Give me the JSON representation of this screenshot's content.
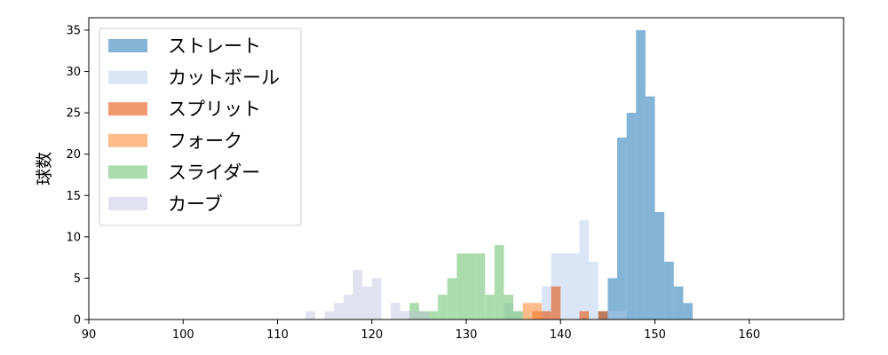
{
  "chart_data": {
    "type": "bar",
    "title": "",
    "xlabel": "",
    "ylabel": "球数",
    "xlim": [
      90,
      170
    ],
    "ylim": [
      0,
      36.5
    ],
    "xticks": [
      90,
      100,
      110,
      120,
      130,
      140,
      150,
      160
    ],
    "yticks": [
      0,
      5,
      10,
      15,
      20,
      25,
      30,
      35
    ],
    "bin_width": 1,
    "grid": false,
    "legend_position": "upper-left",
    "series": [
      {
        "name": "ストレート",
        "color": "#1f77b4",
        "opacity": 0.55,
        "bins": [
          {
            "x": 144,
            "count": 1
          },
          {
            "x": 145,
            "count": 5
          },
          {
            "x": 146,
            "count": 22
          },
          {
            "x": 147,
            "count": 25
          },
          {
            "x": 148,
            "count": 35
          },
          {
            "x": 149,
            "count": 27
          },
          {
            "x": 150,
            "count": 13
          },
          {
            "x": 151,
            "count": 7
          },
          {
            "x": 152,
            "count": 4
          },
          {
            "x": 153,
            "count": 2
          }
        ]
      },
      {
        "name": "カットボール",
        "color": "#aec7e8",
        "opacity": 0.45,
        "bins": [
          {
            "x": 134,
            "count": 2
          },
          {
            "x": 135,
            "count": 1
          },
          {
            "x": 138,
            "count": 4
          },
          {
            "x": 139,
            "count": 8
          },
          {
            "x": 140,
            "count": 8
          },
          {
            "x": 141,
            "count": 8
          },
          {
            "x": 142,
            "count": 12
          },
          {
            "x": 143,
            "count": 7
          },
          {
            "x": 145,
            "count": 1
          },
          {
            "x": 146,
            "count": 1
          }
        ]
      },
      {
        "name": "スプリット",
        "color": "#e6550d",
        "opacity": 0.6,
        "bins": [
          {
            "x": 137,
            "count": 1
          },
          {
            "x": 138,
            "count": 1
          },
          {
            "x": 139,
            "count": 4
          },
          {
            "x": 142,
            "count": 1
          },
          {
            "x": 144,
            "count": 1
          }
        ]
      },
      {
        "name": "フォーク",
        "color": "#fd8d3c",
        "opacity": 0.6,
        "bins": [
          {
            "x": 136,
            "count": 2
          },
          {
            "x": 137,
            "count": 2
          }
        ]
      },
      {
        "name": "スライダー",
        "color": "#74c476",
        "opacity": 0.6,
        "bins": [
          {
            "x": 124,
            "count": 2
          },
          {
            "x": 125,
            "count": 1
          },
          {
            "x": 126,
            "count": 1
          },
          {
            "x": 127,
            "count": 3
          },
          {
            "x": 128,
            "count": 5
          },
          {
            "x": 129,
            "count": 8
          },
          {
            "x": 130,
            "count": 8
          },
          {
            "x": 131,
            "count": 8
          },
          {
            "x": 132,
            "count": 3
          },
          {
            "x": 133,
            "count": 9
          },
          {
            "x": 134,
            "count": 3
          },
          {
            "x": 135,
            "count": 1
          }
        ]
      },
      {
        "name": "カーブ",
        "color": "#bcbddc",
        "opacity": 0.45,
        "bins": [
          {
            "x": 113,
            "count": 1
          },
          {
            "x": 115,
            "count": 1
          },
          {
            "x": 116,
            "count": 2
          },
          {
            "x": 117,
            "count": 3
          },
          {
            "x": 118,
            "count": 6
          },
          {
            "x": 119,
            "count": 4
          },
          {
            "x": 120,
            "count": 5
          },
          {
            "x": 122,
            "count": 2
          },
          {
            "x": 123,
            "count": 1
          },
          {
            "x": 124,
            "count": 1
          },
          {
            "x": 125,
            "count": 1
          }
        ]
      }
    ]
  }
}
